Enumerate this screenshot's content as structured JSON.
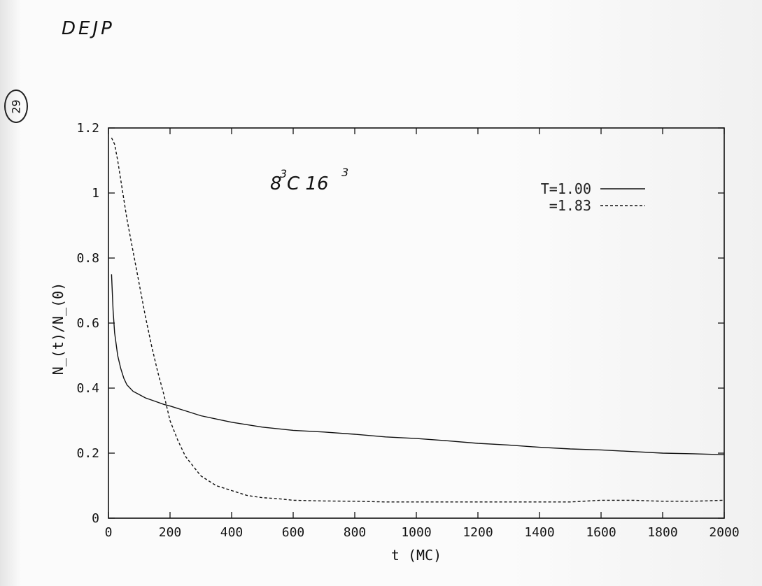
{
  "page": {
    "handwritten_header": "DEJP",
    "page_number": "29"
  },
  "chart_data": {
    "type": "line",
    "title": "",
    "xlabel": "t  (MC)",
    "ylabel": "N_(t)/N_(0)",
    "xlim": [
      0,
      2000
    ],
    "ylim": [
      0,
      1.2
    ],
    "x_ticks": [
      "0",
      "200",
      "400",
      "600",
      "800",
      "1000",
      "1200",
      "1400",
      "1600",
      "1800",
      "2000"
    ],
    "y_ticks": [
      "0",
      "0.2",
      "0.4",
      "0.6",
      "0.8",
      "1",
      "1.2"
    ],
    "grid": false,
    "legend_position": "top-right",
    "annotation": {
      "text": "8³C 16³",
      "base_a": "8",
      "exp_a": "3",
      "middle": "C 16",
      "exp_b": "3"
    },
    "series": [
      {
        "name": "T=1.00",
        "style": "solid",
        "color": "#111111",
        "x": [
          10,
          15,
          20,
          30,
          40,
          50,
          60,
          80,
          100,
          120,
          150,
          180,
          200,
          250,
          300,
          350,
          400,
          500,
          600,
          700,
          800,
          900,
          1000,
          1100,
          1200,
          1300,
          1400,
          1500,
          1600,
          1700,
          1800,
          1900,
          2000
        ],
        "y": [
          0.75,
          0.64,
          0.57,
          0.5,
          0.46,
          0.43,
          0.41,
          0.39,
          0.38,
          0.37,
          0.36,
          0.35,
          0.345,
          0.33,
          0.315,
          0.305,
          0.295,
          0.28,
          0.27,
          0.265,
          0.258,
          0.25,
          0.245,
          0.238,
          0.23,
          0.225,
          0.218,
          0.213,
          0.21,
          0.205,
          0.2,
          0.198,
          0.195
        ]
      },
      {
        "name": "=1.83",
        "style": "dashed",
        "color": "#111111",
        "x": [
          10,
          20,
          30,
          40,
          50,
          60,
          80,
          100,
          120,
          140,
          160,
          180,
          200,
          225,
          250,
          275,
          300,
          350,
          400,
          450,
          500,
          550,
          600,
          700,
          800,
          900,
          1000,
          1100,
          1200,
          1300,
          1400,
          1500,
          1600,
          1700,
          1800,
          1900,
          2000
        ],
        "y": [
          1.17,
          1.15,
          1.1,
          1.04,
          0.98,
          0.92,
          0.82,
          0.72,
          0.62,
          0.53,
          0.45,
          0.38,
          0.3,
          0.24,
          0.19,
          0.16,
          0.13,
          0.1,
          0.085,
          0.07,
          0.063,
          0.06,
          0.055,
          0.053,
          0.052,
          0.05,
          0.05,
          0.05,
          0.05,
          0.05,
          0.05,
          0.05,
          0.055,
          0.055,
          0.052,
          0.052,
          0.055
        ]
      }
    ]
  }
}
